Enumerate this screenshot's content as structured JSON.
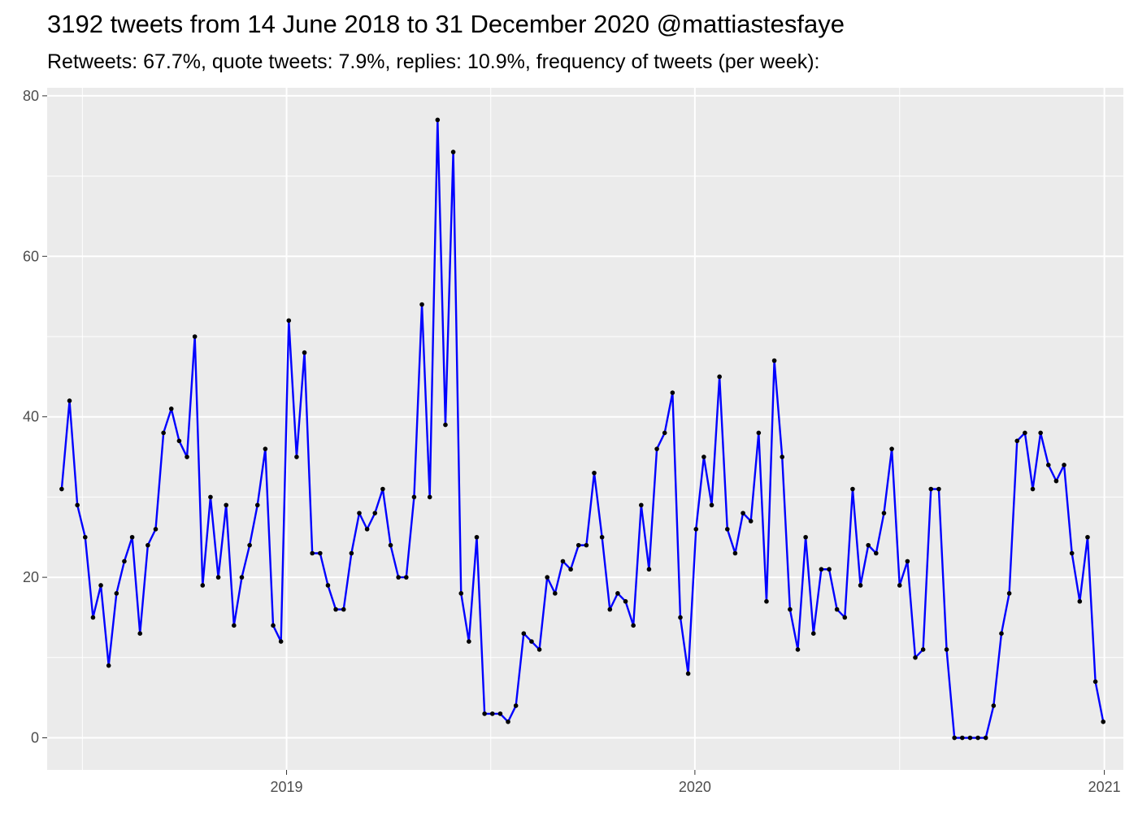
{
  "title": "3192 tweets from 14 June 2018 to 31 December 2020 @mattiastesfaye",
  "subtitle": "Retweets: 67.7%, quote tweets: 7.9%, replies: 10.9%, frequency of tweets (per week):",
  "colors": {
    "line": "#0000ff",
    "point": "#000000",
    "panel": "#ebebeb",
    "grid": "#ffffff"
  },
  "chart_data": {
    "type": "line",
    "title": "3192 tweets from 14 June 2018 to 31 December 2020 @mattiastesfaye",
    "subtitle": "Retweets: 67.7%, quote tweets: 7.9%, replies: 10.9%, frequency of tweets (per week):",
    "xlabel": "",
    "ylabel": "",
    "x_start": "2018-06-14",
    "x_step_days": 7,
    "xlim": [
      "2018-06-01",
      "2021-01-18"
    ],
    "ylim": [
      -4,
      81
    ],
    "y_ticks": [
      0,
      20,
      40,
      60,
      80
    ],
    "x_ticks": [
      {
        "label": "2019",
        "date": "2019-01-01"
      },
      {
        "label": "2020",
        "date": "2020-01-01"
      },
      {
        "label": "2021",
        "date": "2021-01-01"
      }
    ],
    "grid": true,
    "legend": "none",
    "values": [
      31,
      42,
      29,
      25,
      15,
      19,
      9,
      18,
      22,
      25,
      13,
      24,
      26,
      38,
      41,
      37,
      35,
      50,
      19,
      30,
      20,
      29,
      14,
      20,
      24,
      29,
      36,
      14,
      12,
      52,
      35,
      48,
      23,
      23,
      19,
      16,
      16,
      23,
      28,
      26,
      28,
      31,
      24,
      20,
      20,
      30,
      54,
      30,
      77,
      39,
      73,
      18,
      12,
      25,
      3,
      3,
      3,
      2,
      4,
      13,
      12,
      11,
      20,
      18,
      22,
      21,
      24,
      24,
      33,
      25,
      16,
      18,
      17,
      14,
      29,
      21,
      36,
      38,
      43,
      15,
      8,
      26,
      35,
      29,
      45,
      26,
      23,
      28,
      27,
      38,
      17,
      47,
      35,
      16,
      11,
      25,
      13,
      21,
      21,
      16,
      15,
      31,
      19,
      24,
      23,
      28,
      36,
      19,
      22,
      10,
      11,
      31,
      31,
      11,
      0,
      0,
      0,
      0,
      0,
      4,
      13,
      18,
      37,
      38,
      31,
      38,
      34,
      32,
      34,
      23,
      17,
      25,
      7,
      2
    ]
  }
}
